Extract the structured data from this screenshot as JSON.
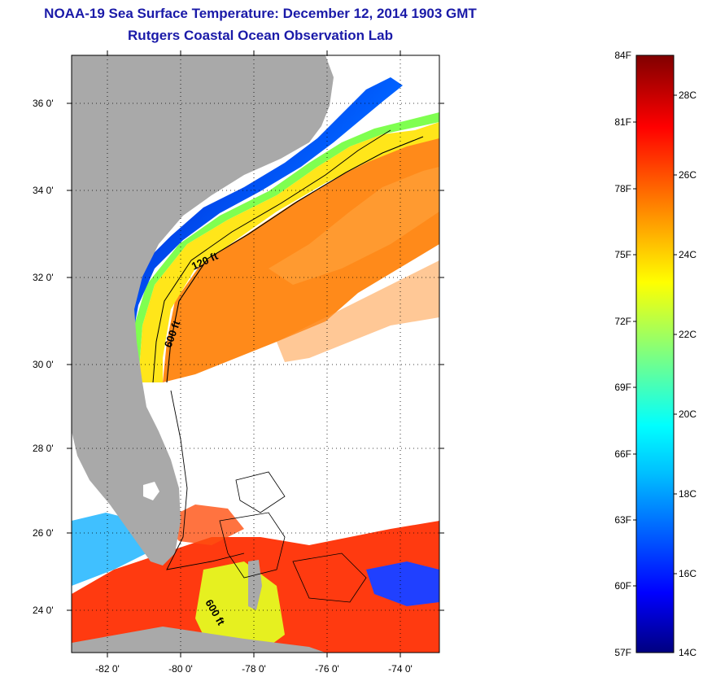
{
  "title": "NOAA-19 Sea Surface Temperature:  December 12, 2014 1903 GMT",
  "subtitle": "Rutgers Coastal Ocean Observation Lab",
  "map": {
    "lat_labels": [
      "36 0'",
      "34 0'",
      "32 0'",
      "30 0'",
      "28 0'",
      "26 0'",
      "24 0'"
    ],
    "lon_labels": [
      "-82 0'",
      "-80 0'",
      "-78 0'",
      "-76 0'",
      "-74 0'"
    ],
    "contour_labels": [
      "120 ft",
      "600 ft",
      "600 ft"
    ],
    "land_color": "#a9a9a9",
    "grid": "dotted"
  },
  "colorbar": {
    "f_labels": [
      "84F",
      "81F",
      "78F",
      "75F",
      "72F",
      "69F",
      "66F",
      "63F",
      "60F",
      "57F"
    ],
    "c_labels": [
      "28C",
      "26C",
      "24C",
      "22C",
      "20C",
      "18C",
      "16C",
      "14C"
    ],
    "colors": [
      "#000080",
      "#0000ff",
      "#00bfff",
      "#00ffff",
      "#7fff7f",
      "#ffff00",
      "#ff8000",
      "#ff0000",
      "#800000"
    ]
  }
}
